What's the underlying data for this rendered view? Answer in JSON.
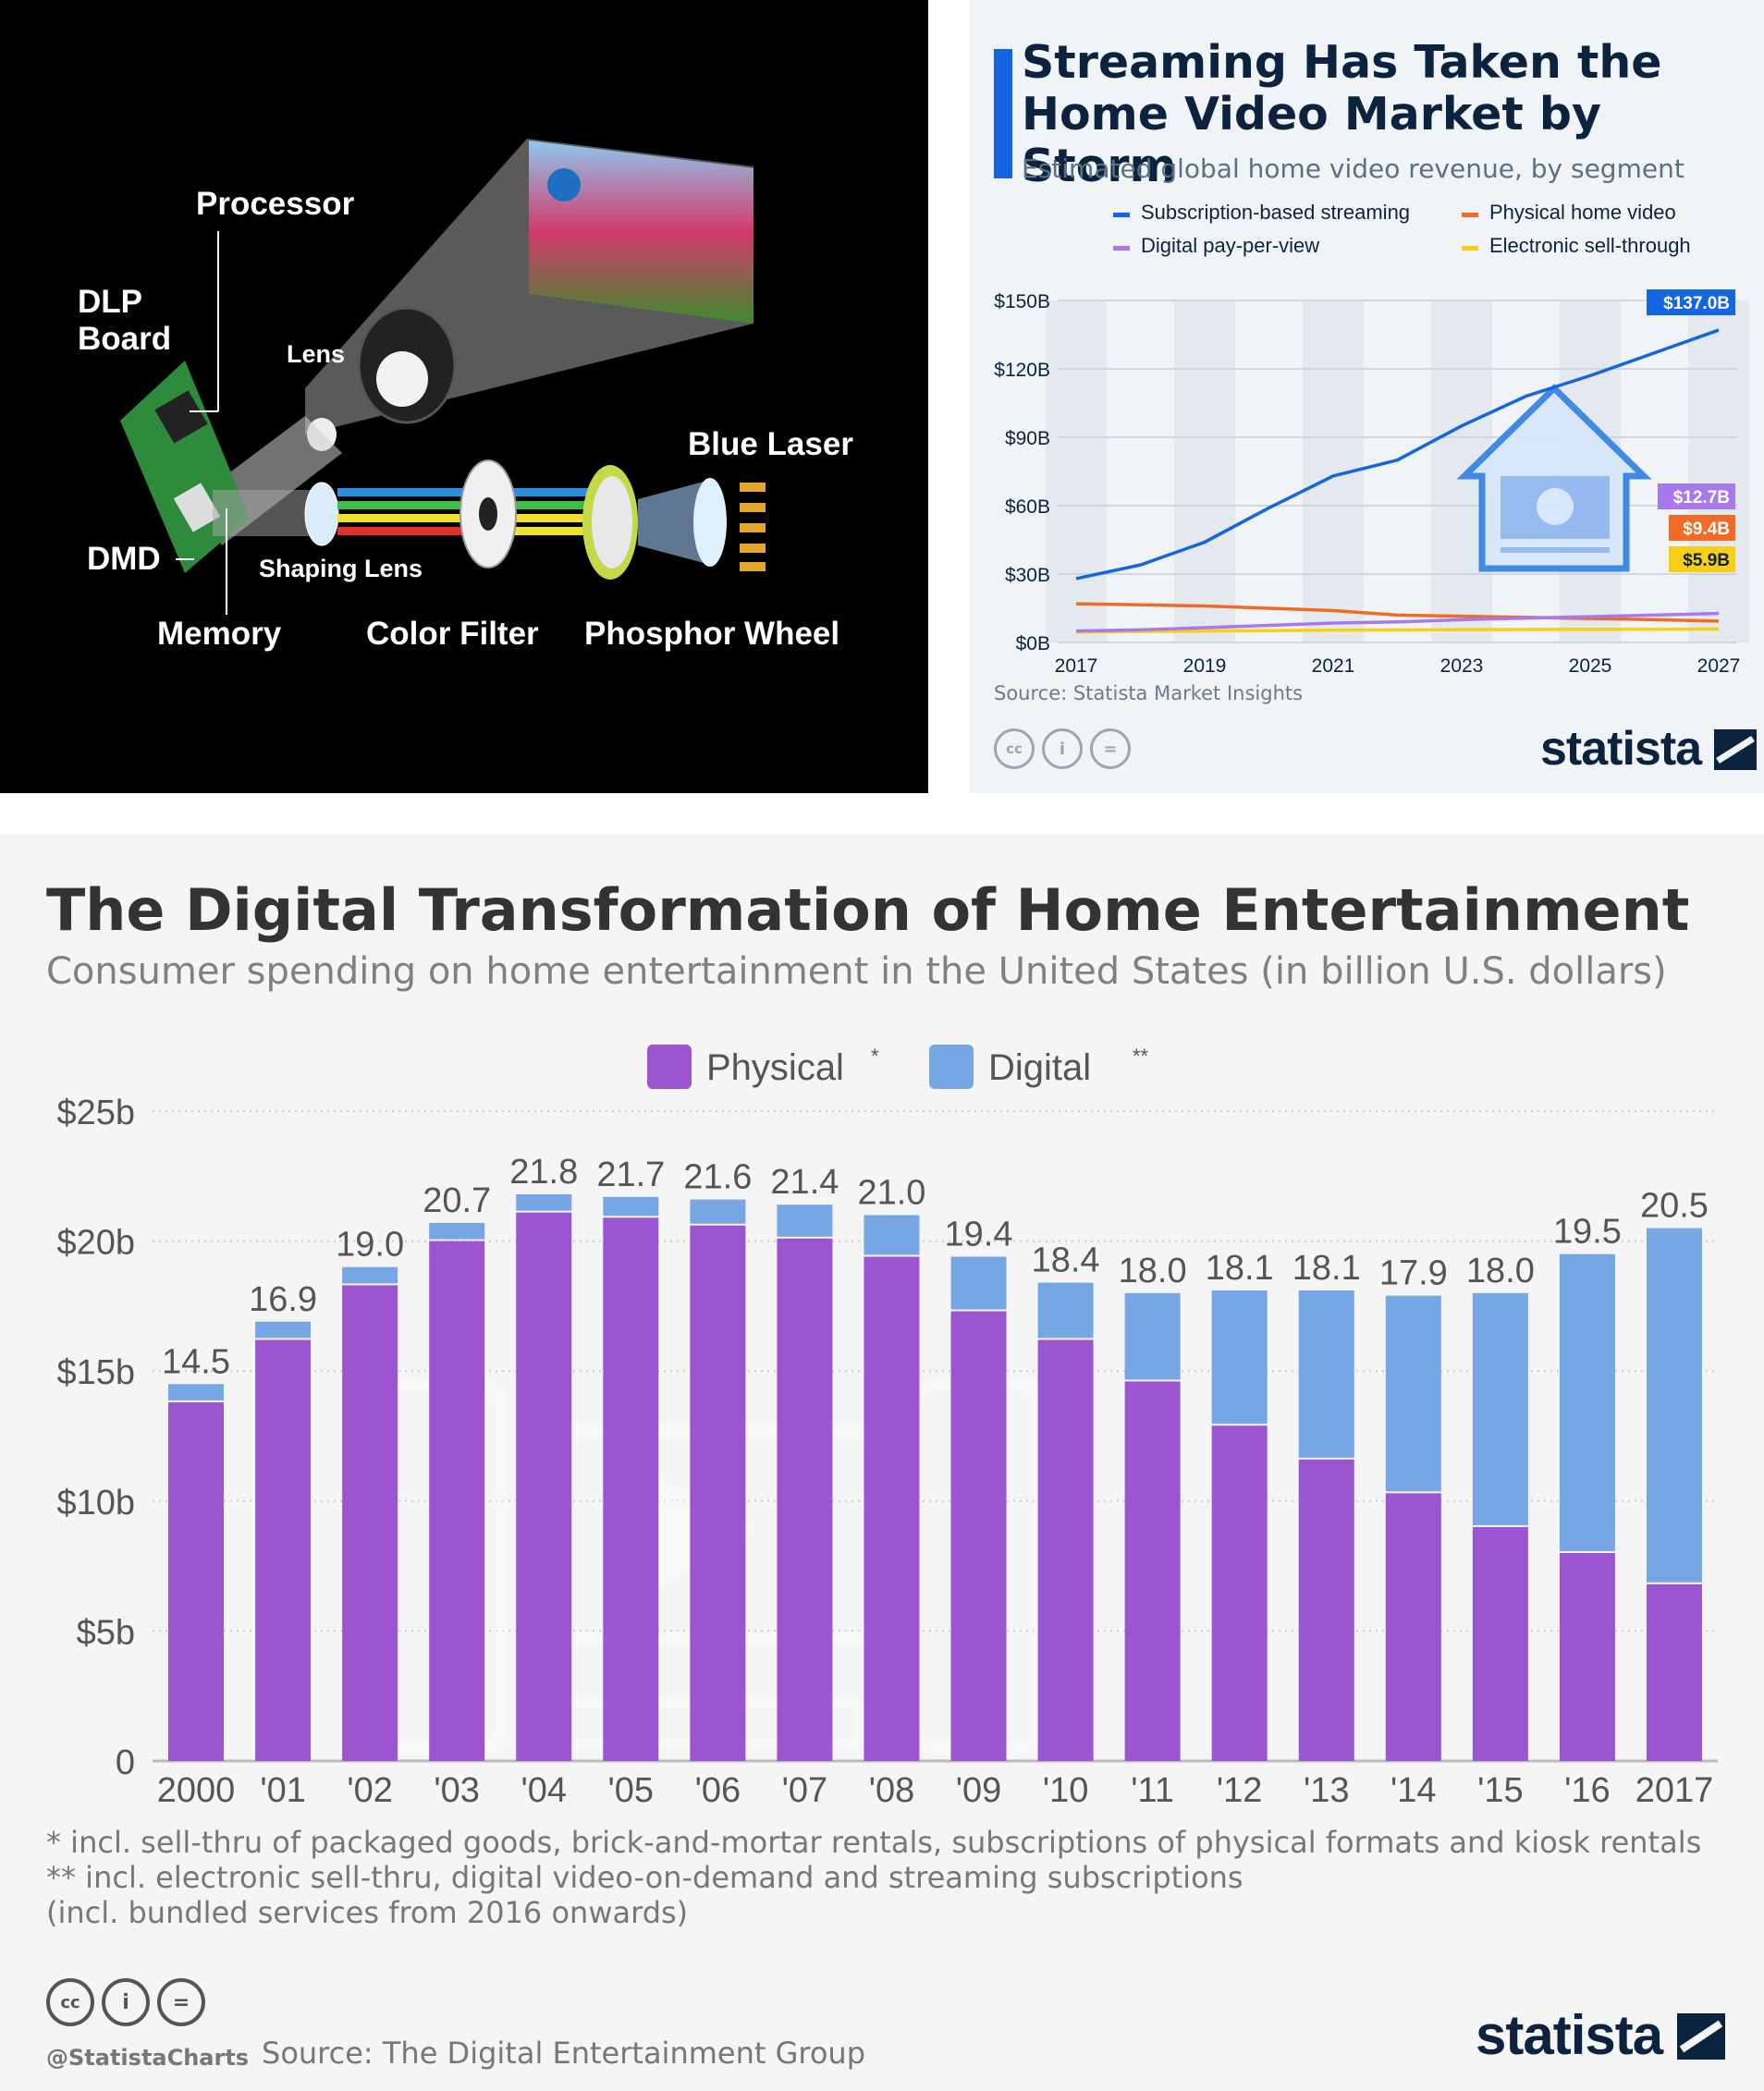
{
  "dlp_diagram": {
    "labels": {
      "processor": "Processor",
      "dlp_board": "DLP\nBoard",
      "lens": "Lens",
      "dmd": "DMD",
      "shaping_lens": "Shaping Lens",
      "memory": "Memory",
      "color_filter": "Color Filter",
      "phosphor_wheel": "Phosphor Wheel",
      "blue_laser": "Blue Laser"
    }
  },
  "streaming": {
    "title": "Streaming Has Taken the Home Video Market by Storm",
    "subtitle": "Estimated global home video revenue, by segment",
    "source": "Source: Statista Market Insights",
    "brand": "statista",
    "colors": {
      "streaming": "#1565e0",
      "physical": "#f26b24",
      "ppv": "#a779ec",
      "est": "#f7cf14"
    }
  },
  "home": {
    "title": "The Digital Transformation of Home Entertainment",
    "subtitle": "Consumer spending on home entertainment in the United States (in billion U.S. dollars)",
    "footnotes": [
      "*   incl. sell-thru of packaged goods, brick-and-mortar rentals, subscriptions of physical formats and kiosk rentals",
      "** incl. electronic sell-thru, digital video-on-demand and streaming subscriptions",
      "     (incl. bundled services from 2016 onwards)"
    ],
    "handle": "@StatistaCharts",
    "source": "Source: The Digital Entertainment Group",
    "brand": "statista",
    "colors": {
      "physical": "#9b55d0",
      "digital": "#77a6e4"
    }
  },
  "chart_data": [
    {
      "type": "line",
      "title": "Streaming Has Taken the Home Video Market by Storm",
      "subtitle": "Estimated global home video revenue, by segment",
      "x": [
        2017,
        2018,
        2019,
        2020,
        2021,
        2022,
        2023,
        2024,
        2025,
        2026,
        2027
      ],
      "xticks": [
        "2017",
        "2019",
        "2021",
        "2023",
        "2025",
        "2027"
      ],
      "yticks": [
        "$0B",
        "$30B",
        "$60B",
        "$90B",
        "$120B",
        "$150B"
      ],
      "ylim": [
        0,
        150
      ],
      "ylabel": "",
      "legend": [
        "Subscription-based streaming",
        "Physical home video",
        "Digital pay-per-view",
        "Electronic sell-through"
      ],
      "series": [
        {
          "name": "Subscription-based streaming",
          "values": [
            28,
            34,
            44,
            59,
            73,
            80,
            95,
            108,
            117,
            127,
            137
          ],
          "end_label": "$137.0B"
        },
        {
          "name": "Physical home video",
          "values": [
            17,
            16.5,
            16,
            15,
            14,
            12,
            11.5,
            11,
            10.5,
            10,
            9.4
          ],
          "end_label": "$9.4B"
        },
        {
          "name": "Digital pay-per-view",
          "values": [
            5,
            5.5,
            6.5,
            7.5,
            8.5,
            9,
            10,
            10.7,
            11.3,
            12,
            12.7
          ],
          "end_label": "$12.7B"
        },
        {
          "name": "Electronic sell-through",
          "values": [
            4.5,
            4.8,
            5,
            5.2,
            5.4,
            5.5,
            5.6,
            5.7,
            5.8,
            5.8,
            5.9
          ],
          "end_label": "$5.9B"
        }
      ]
    },
    {
      "type": "bar",
      "stacked": true,
      "title": "The Digital Transformation of Home Entertainment",
      "subtitle": "Consumer spending on home entertainment in the United States (in billion U.S. dollars)",
      "categories": [
        "2000",
        "'01",
        "'02",
        "'03",
        "'04",
        "'05",
        "'06",
        "'07",
        "'08",
        "'09",
        "'10",
        "'11",
        "'12",
        "'13",
        "'14",
        "'15",
        "'16",
        "2017"
      ],
      "yticks": [
        "0",
        "$5b",
        "$10b",
        "$15b",
        "$20b",
        "$25b"
      ],
      "ylim": [
        0,
        25
      ],
      "legend": [
        "Physical",
        "Digital"
      ],
      "legend_marks": [
        "*",
        "**"
      ],
      "series": [
        {
          "name": "Physical",
          "values": [
            13.8,
            16.2,
            18.3,
            20.0,
            21.1,
            20.9,
            20.6,
            20.1,
            19.4,
            17.3,
            16.2,
            14.6,
            12.9,
            11.6,
            10.3,
            9.0,
            8.0,
            6.8
          ]
        },
        {
          "name": "Digital",
          "values": [
            0.7,
            0.7,
            0.7,
            0.7,
            0.7,
            0.8,
            1.0,
            1.3,
            1.6,
            2.1,
            2.2,
            3.4,
            5.2,
            6.5,
            7.6,
            9.0,
            11.5,
            13.7
          ]
        }
      ],
      "totals": [
        "14.5",
        "16.9",
        "19.0",
        "20.7",
        "21.8",
        "21.7",
        "21.6",
        "21.4",
        "21.0",
        "19.4",
        "18.4",
        "18.0",
        "18.1",
        "18.1",
        "17.9",
        "18.0",
        "19.5",
        "20.5"
      ]
    }
  ]
}
